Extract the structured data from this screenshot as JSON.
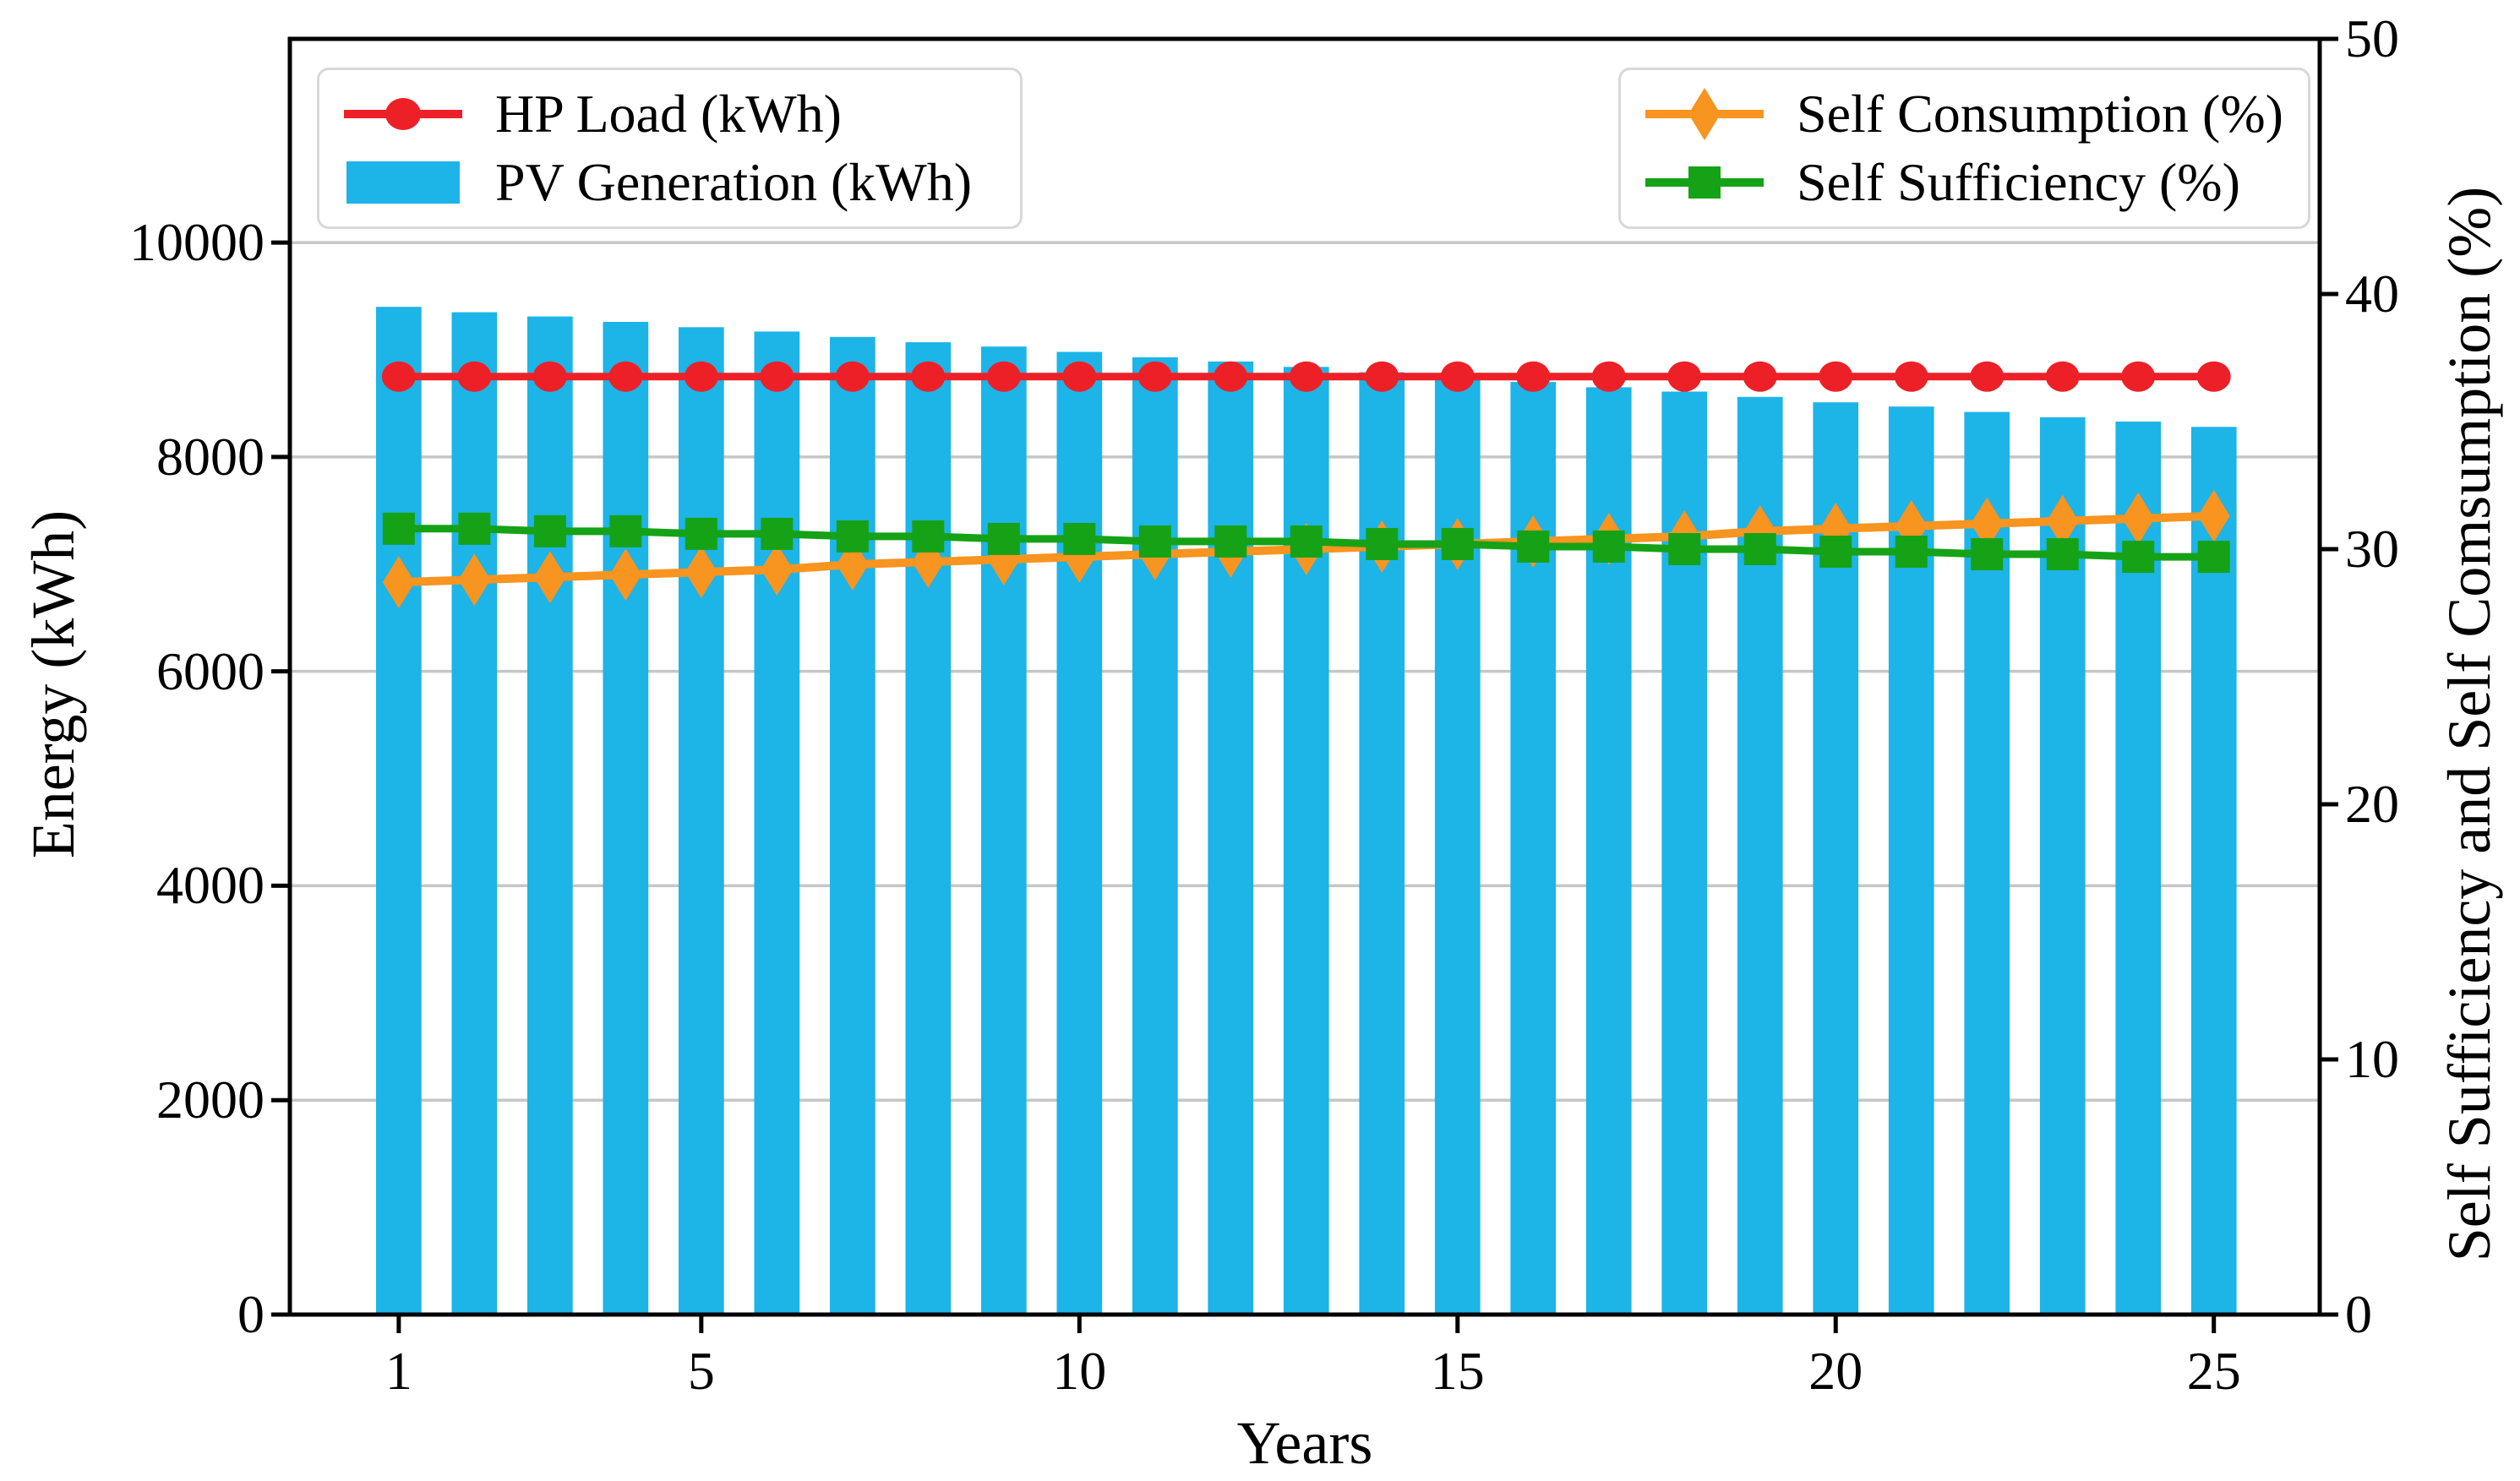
{
  "chart_data": {
    "type": "bar",
    "description": "Combo chart: PV generation bars with HP load, self consumption and self sufficiency lines over 25 years",
    "x": [
      1,
      2,
      3,
      4,
      5,
      6,
      7,
      8,
      9,
      10,
      11,
      12,
      13,
      14,
      15,
      16,
      17,
      18,
      19,
      20,
      21,
      22,
      23,
      24,
      25
    ],
    "xlabel": "Years",
    "ylabel_left": "Energy (kWh)",
    "ylabel_right": "Self Sufficiency and Self Comsumption (%)",
    "xlim": [
      -0.44,
      26.4
    ],
    "ylim_left": [
      0,
      11900
    ],
    "ylim_right": [
      0,
      50
    ],
    "x_ticks": [
      1,
      5,
      10,
      15,
      20,
      25
    ],
    "y_ticks_left": [
      0,
      2000,
      4000,
      6000,
      8000,
      10000
    ],
    "y_ticks_right": [
      0,
      10,
      20,
      30,
      40,
      50
    ],
    "grid": {
      "horizontal": true,
      "vertical": false,
      "at": "left-axis-ticks"
    },
    "series": [
      {
        "name": "PV Generation (kWh)",
        "kind": "bar",
        "axis": "left",
        "color": "#1db4e8",
        "bar_width_years": 0.6,
        "values": [
          9400,
          9350,
          9310,
          9260,
          9210,
          9170,
          9120,
          9070,
          9030,
          8980,
          8930,
          8890,
          8840,
          8790,
          8750,
          8700,
          8650,
          8610,
          8560,
          8510,
          8470,
          8420,
          8370,
          8330,
          8280
        ]
      },
      {
        "name": "HP Load (kWh)",
        "kind": "line",
        "axis": "left",
        "color": "#ee2027",
        "marker": "circle",
        "values": [
          8750,
          8750,
          8750,
          8750,
          8750,
          8750,
          8750,
          8750,
          8750,
          8750,
          8750,
          8750,
          8750,
          8750,
          8750,
          8750,
          8750,
          8750,
          8750,
          8750,
          8750,
          8750,
          8750,
          8750,
          8750
        ]
      },
      {
        "name": "Self Consumption (%)",
        "kind": "line",
        "axis": "right",
        "color": "#f89420",
        "marker": "diamond",
        "values": [
          28.7,
          28.8,
          28.9,
          29.0,
          29.1,
          29.2,
          29.4,
          29.5,
          29.6,
          29.7,
          29.8,
          29.9,
          30.0,
          30.1,
          30.2,
          30.3,
          30.4,
          30.5,
          30.7,
          30.8,
          30.9,
          31.0,
          31.1,
          31.2,
          31.3
        ]
      },
      {
        "name": "Self Sufficiency (%)",
        "kind": "line",
        "axis": "right",
        "color": "#16a216",
        "marker": "square",
        "values": [
          30.8,
          30.8,
          30.7,
          30.7,
          30.6,
          30.6,
          30.5,
          30.5,
          30.4,
          30.4,
          30.3,
          30.3,
          30.3,
          30.2,
          30.2,
          30.1,
          30.1,
          30.0,
          30.0,
          29.9,
          29.9,
          29.8,
          29.8,
          29.7,
          29.7
        ]
      }
    ],
    "legend_positions": {
      "left_box": "upper left",
      "right_box": "upper right"
    }
  },
  "legends": {
    "left": {
      "entries": [
        {
          "label": "HP Load (kWh)",
          "marker": "line-circle",
          "series": 1
        },
        {
          "label": "PV Generation (kWh)",
          "marker": "patch",
          "series": 0
        }
      ]
    },
    "right": {
      "entries": [
        {
          "label": "Self Consumption (%)",
          "marker": "line-diamond",
          "series": 2
        },
        {
          "label": "Self Sufficiency (%)",
          "marker": "line-square",
          "series": 3
        }
      ]
    }
  },
  "colors": {
    "background": "#ffffff",
    "spine": "#000000",
    "grid": "#c6c6c6",
    "legend_border": "#d8d8d8",
    "pv_blue": "#1db4e8",
    "hp_red": "#ee2027",
    "self_consumption_orange": "#f89420",
    "self_sufficiency_green": "#16a216"
  }
}
